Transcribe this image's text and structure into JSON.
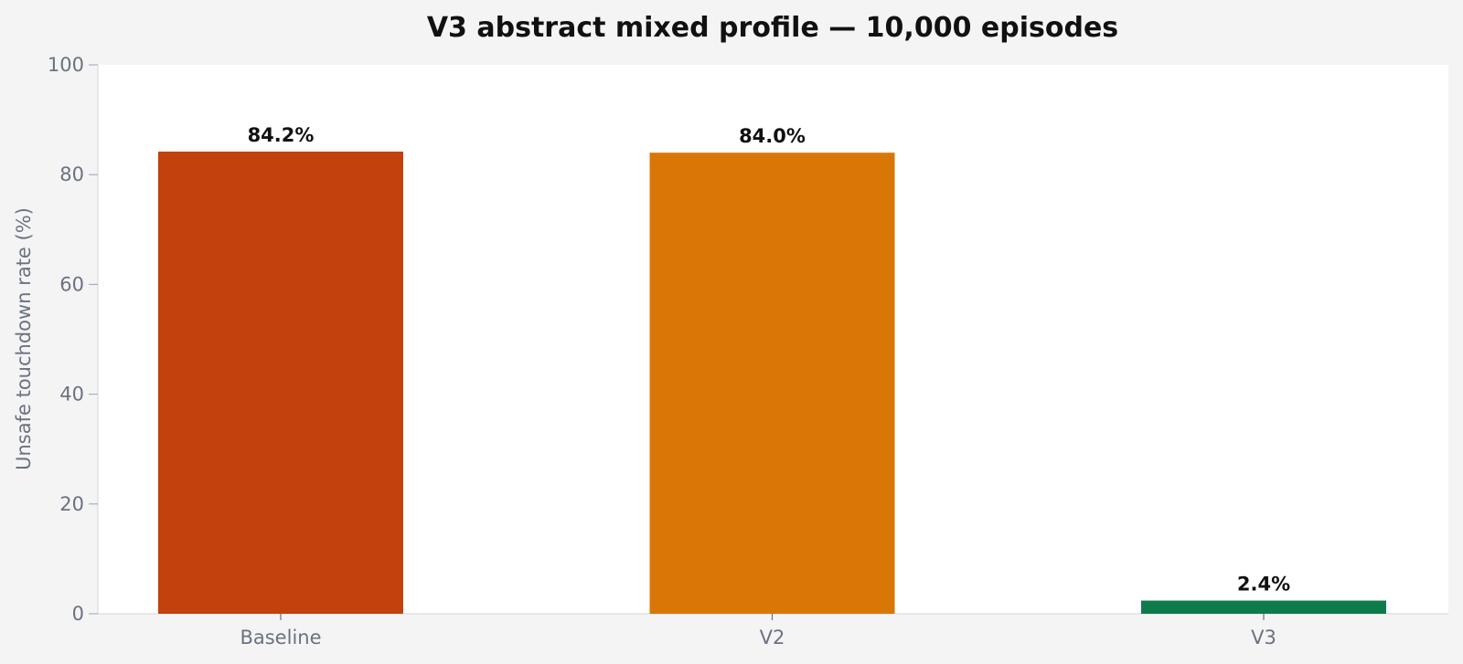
{
  "chart_data": {
    "type": "bar",
    "title": "V3 abstract mixed profile — 10,000 episodes",
    "xlabel": "",
    "ylabel": "Unsafe touchdown rate (%)",
    "categories": [
      "Baseline",
      "V2",
      "V3"
    ],
    "values": [
      84.2,
      84.0,
      2.4
    ],
    "data_labels": [
      "84.2%",
      "84.0%",
      "2.4%"
    ],
    "colors": [
      "#c2410c",
      "#d97706",
      "#0f7a4c"
    ],
    "ylim": [
      0,
      100
    ],
    "yticks": [
      0,
      20,
      40,
      60,
      80,
      100
    ],
    "grid": false,
    "legend": "none",
    "plot_background": "#ffffff",
    "page_background": "#f4f4f5"
  }
}
